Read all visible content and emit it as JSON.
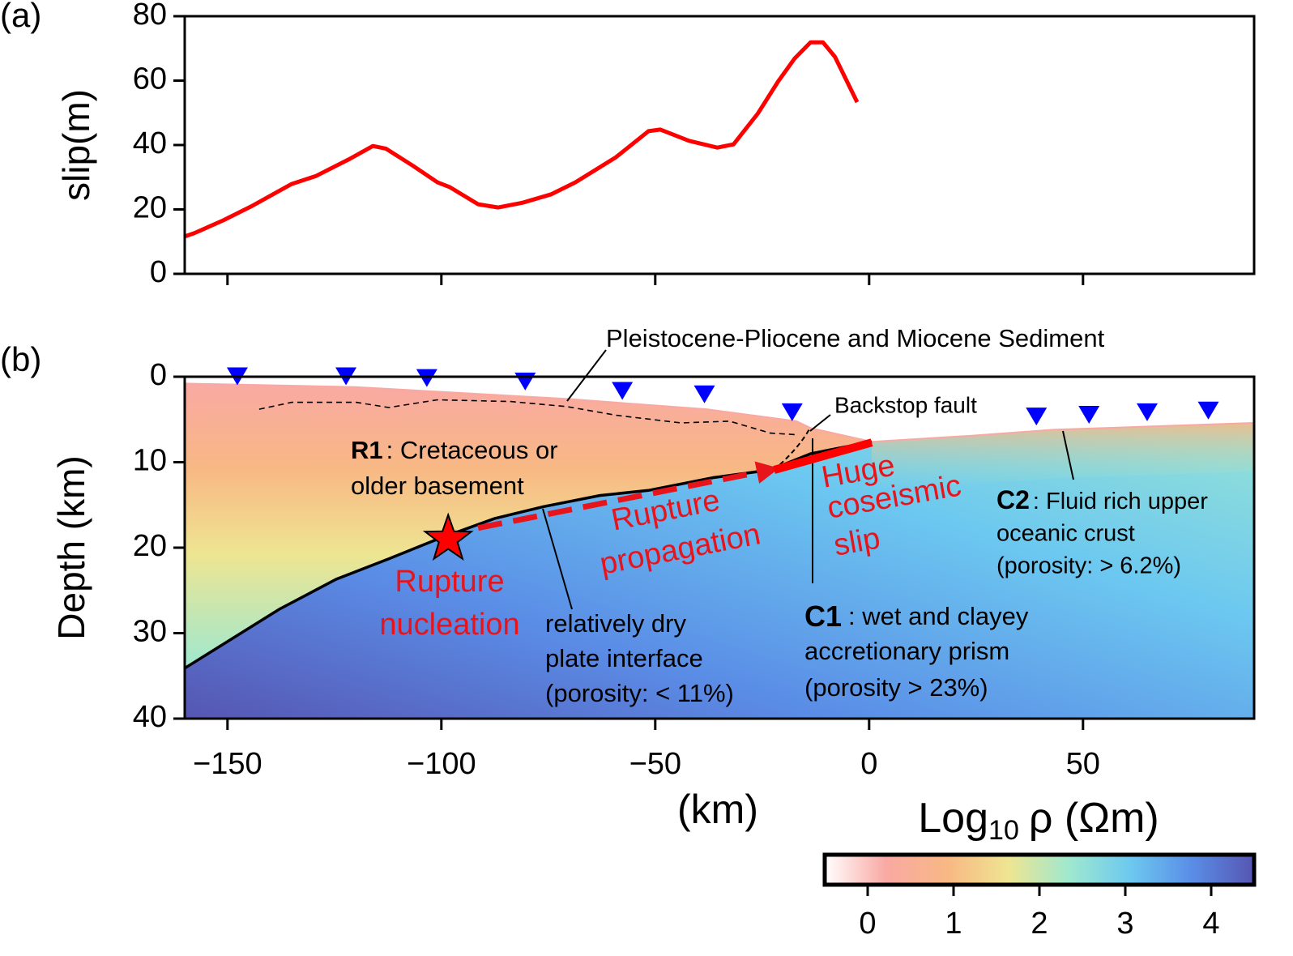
{
  "chart_data": [
    {
      "type": "line",
      "panel_label": "(a)",
      "ylabel": "slip(m)",
      "xlim": [
        -160,
        90
      ],
      "ylim": [
        0,
        80
      ],
      "yticks": [
        0,
        20,
        40,
        60,
        80
      ],
      "color": "#ff0000",
      "x": [
        -160,
        -157.8,
        -151,
        -144.5,
        -135,
        -129.3,
        -121.7,
        -116,
        -113,
        -106.6,
        -100.9,
        -98,
        -91.4,
        -86.7,
        -81,
        -74.3,
        -68.7,
        -59.2,
        -51.6,
        -48.8,
        -42.1,
        -35.5,
        -31.7,
        -26,
        -21.2,
        -17.4,
        -13.7,
        -10.8,
        -8,
        -2.8
      ],
      "values": [
        11.6,
        12.6,
        16.6,
        20.9,
        27.9,
        30.4,
        35.5,
        39.7,
        38.9,
        33.5,
        28.4,
        26.9,
        21.6,
        20.6,
        22.1,
        24.7,
        28.4,
        36.2,
        44.3,
        44.8,
        41.3,
        39.2,
        40.2,
        49.8,
        59.9,
        66.9,
        71.9,
        71.9,
        67.4,
        53.3
      ]
    },
    {
      "type": "cross-section",
      "panel_label": "(b)",
      "ylabel": "Depth (km)",
      "xlabel": "(km)",
      "xlim": [
        -160,
        90
      ],
      "ylim": [
        40,
        0
      ],
      "xticks": [
        {
          "value": -150,
          "label": "−150"
        },
        {
          "value": -100,
          "label": "−100"
        },
        {
          "value": -50,
          "label": "−50"
        },
        0,
        50
      ],
      "yticks": [
        0,
        10,
        20,
        30,
        40
      ],
      "surface": {
        "x": [
          -160,
          -120,
          -70.5,
          -38,
          -17,
          -13.7,
          0.6,
          24,
          43,
          90
        ],
        "values": [
          0.8,
          1.2,
          2.6,
          3.8,
          5.2,
          6.0,
          7.6,
          6.9,
          6.2,
          5.4
        ]
      },
      "plate_interface": {
        "x": [
          -160,
          -137.9,
          -124.6,
          -112.3,
          -100.9,
          -87.6,
          -76.2,
          -63,
          -51.6,
          -36.4,
          -23.1,
          -13.7,
          0.6
        ],
        "values": [
          34.1,
          27.2,
          23.7,
          21.3,
          19.0,
          16.6,
          15.2,
          13.9,
          13.3,
          11.8,
          10.9,
          9.0,
          7.6
        ]
      },
      "sediment_boundary": {
        "x": [
          -142.6,
          -135,
          -119.9,
          -112.3,
          -100.9,
          -83.8,
          -70.6,
          -59.2,
          -44,
          -32.6,
          -23.1,
          -16.5
        ],
        "values": [
          3.8,
          3.0,
          3.0,
          3.6,
          2.7,
          2.9,
          3.5,
          4.5,
          5.4,
          5.2,
          6.6,
          6.8
        ]
      },
      "stations": {
        "color": "#0000ff",
        "x": [
          -147.7,
          -122.3,
          -103.4,
          -80.4,
          -57.7,
          -38.5,
          -18,
          39.1,
          51.4,
          65.0,
          79.3
        ],
        "values": [
          1.0,
          1.0,
          1.2,
          1.6,
          2.7,
          3.1,
          5.2,
          5.7,
          5.5,
          5.2,
          5.0
        ]
      },
      "hypocenter": {
        "x": -98.4,
        "depth": 19.0
      },
      "rupture_propagation": {
        "x": [
          -91.4,
          -23.1
        ],
        "values": [
          17.7,
          10.9
        ]
      },
      "coseismic_slip": {
        "x": [
          -22.2,
          0.6
        ],
        "values": [
          10.9,
          7.7
        ]
      },
      "annotations": {
        "sediment": "Pleistocene-Pliocene and Miocene Sediment",
        "backstop": "Backstop fault",
        "r1": {
          "label": "R1",
          "lines": [
            ": Cretaceous or",
            "older basement"
          ]
        },
        "nucleation": [
          "Rupture",
          "nucleation"
        ],
        "propagation": [
          "Rupture",
          "propagation"
        ],
        "slip": [
          "Huge",
          "coseismic",
          "slip"
        ],
        "interface": [
          "relatively dry",
          "plate interface",
          "(porosity: < 11%)"
        ],
        "c1": {
          "label": "C1",
          "lines": [
            ": wet and clayey",
            "accretionary prism",
            "(porosity > 23%)"
          ]
        },
        "c2": {
          "label": "C2",
          "lines": [
            ": Fluid rich upper",
            "oceanic crust",
            "(porosity: > 6.2%)"
          ]
        }
      },
      "colorbar": {
        "label": "Log",
        "label_sub": "10",
        "label_unit": "ρ (Ωm)",
        "lim": [
          -0.5,
          4.5
        ],
        "ticks": [
          0,
          1,
          2,
          3,
          4
        ],
        "colors": [
          "#ffffff",
          "#f9a9a3",
          "#f8b884",
          "#eee592",
          "#9ee8d0",
          "#6cc8f0",
          "#5a8ce6",
          "#5656b2"
        ]
      }
    }
  ]
}
